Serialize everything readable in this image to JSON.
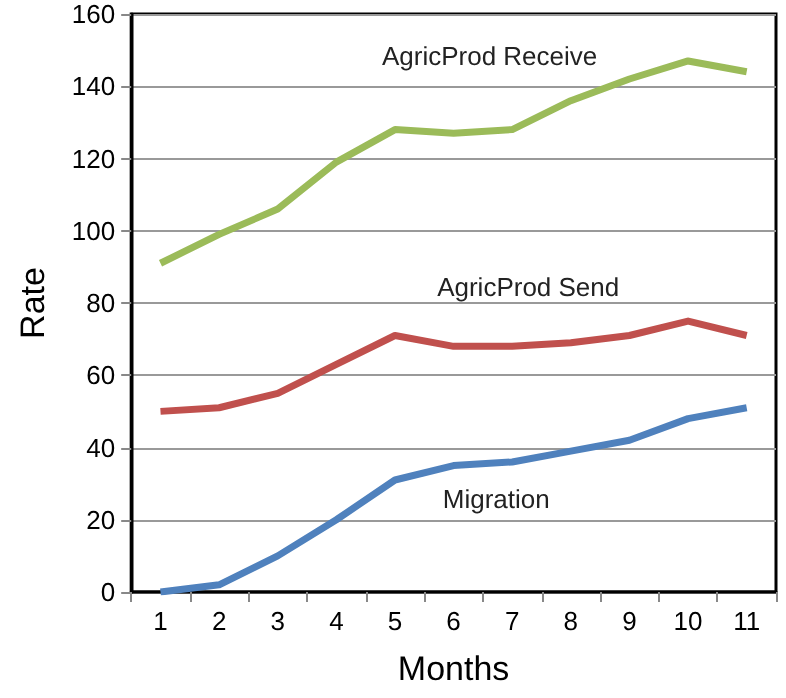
{
  "chart_data": {
    "type": "line",
    "xlabel": "Months",
    "ylabel": "Rate",
    "categories": [
      "1",
      "2",
      "3",
      "4",
      "5",
      "6",
      "7",
      "8",
      "9",
      "10",
      "11"
    ],
    "series": [
      {
        "name": "AgricProd Receive",
        "color": "#9bbb59",
        "values": [
          91,
          99,
          106,
          119,
          128,
          127,
          128,
          136,
          142,
          147,
          144
        ]
      },
      {
        "name": "AgricProd Send",
        "color": "#c0504d",
        "values": [
          50,
          51,
          55,
          63,
          71,
          68,
          68,
          69,
          71,
          75,
          71
        ]
      },
      {
        "name": "Migration",
        "color": "#4f81bd",
        "values": [
          0,
          2,
          10,
          20,
          31,
          35,
          36,
          39,
          42,
          48,
          51
        ]
      }
    ],
    "ylim": [
      0,
      160
    ],
    "yticks": [
      0,
      20,
      40,
      60,
      80,
      100,
      120,
      140,
      160
    ],
    "grid": "y",
    "legend": false,
    "marker": "none",
    "line_style": "solid"
  }
}
